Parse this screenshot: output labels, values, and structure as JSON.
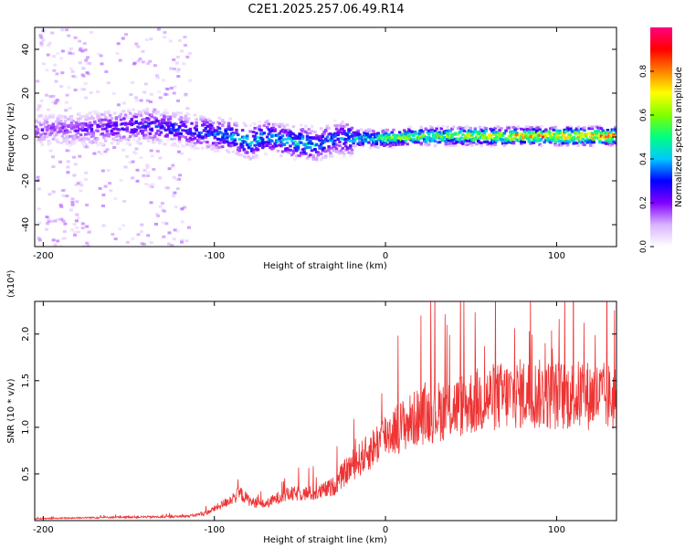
{
  "title": "C2E1.2025.257.06.49.R14",
  "chart_data": [
    {
      "type": "heatmap",
      "title": "C2E1.2025.257.06.49.R14",
      "xlabel": "Height of straight line (km)",
      "ylabel": "Frequency (Hz)",
      "xlim": [
        -205,
        135
      ],
      "ylim": [
        -50,
        50
      ],
      "xticks": [
        -200,
        -100,
        0,
        100
      ],
      "yticks": [
        -40,
        -20,
        0,
        20,
        40
      ],
      "colorbar": {
        "label": "Normalized spectral amplitude",
        "range": [
          0,
          1
        ],
        "ticks": [
          "0.0",
          "0.2",
          "0.4",
          "0.6",
          "0.8"
        ],
        "colors": [
          "#ffffff",
          "#d9b3ff",
          "#8000ff",
          "#0000ff",
          "#00c8ff",
          "#00ff80",
          "#80ff00",
          "#ffff00",
          "#ff8000",
          "#ff0000",
          "#ff0080"
        ]
      },
      "ridge": {
        "x": [
          -190,
          -160,
          -140,
          -130,
          -110,
          -90,
          -80,
          -70,
          -60,
          -50,
          -40,
          -30,
          -20,
          0,
          20,
          40,
          60,
          80,
          100,
          120,
          135
        ],
        "center_hz": [
          4,
          5,
          6,
          5,
          3,
          1,
          -2,
          1,
          -1,
          -2,
          -3,
          0,
          0,
          0,
          1,
          1,
          1,
          1,
          1,
          1,
          1
        ],
        "amplitude": [
          0.2,
          0.3,
          0.35,
          0.35,
          0.35,
          0.45,
          0.5,
          0.45,
          0.45,
          0.5,
          0.45,
          0.4,
          0.5,
          0.65,
          0.7,
          0.75,
          0.8,
          0.85,
          0.9,
          0.95,
          0.9
        ]
      }
    },
    {
      "type": "line",
      "xlabel": "Height of straight line (km)",
      "ylabel": "SNR (10 * v/v)",
      "y_multiplier": "(x10⁴)",
      "xlim": [
        -205,
        135
      ],
      "ylim": [
        0,
        2.35
      ],
      "xticks": [
        -200,
        -100,
        0,
        100
      ],
      "yticks": [
        "0.5",
        "1.0",
        "1.5",
        "2.0"
      ],
      "series": [
        {
          "name": "SNR",
          "color": "#ee3333",
          "x": [
            -205,
            -180,
            -150,
            -130,
            -115,
            -105,
            -95,
            -85,
            -78,
            -70,
            -60,
            -50,
            -40,
            -30,
            -25,
            -20,
            -10,
            0,
            10,
            20,
            40,
            60,
            80,
            100,
            120,
            135
          ],
          "y": [
            0.02,
            0.03,
            0.04,
            0.04,
            0.05,
            0.08,
            0.18,
            0.3,
            0.2,
            0.18,
            0.28,
            0.3,
            0.3,
            0.38,
            0.5,
            0.6,
            0.75,
            0.95,
            1.05,
            1.15,
            1.25,
            1.35,
            1.4,
            1.38,
            1.38,
            1.35
          ]
        }
      ]
    }
  ]
}
